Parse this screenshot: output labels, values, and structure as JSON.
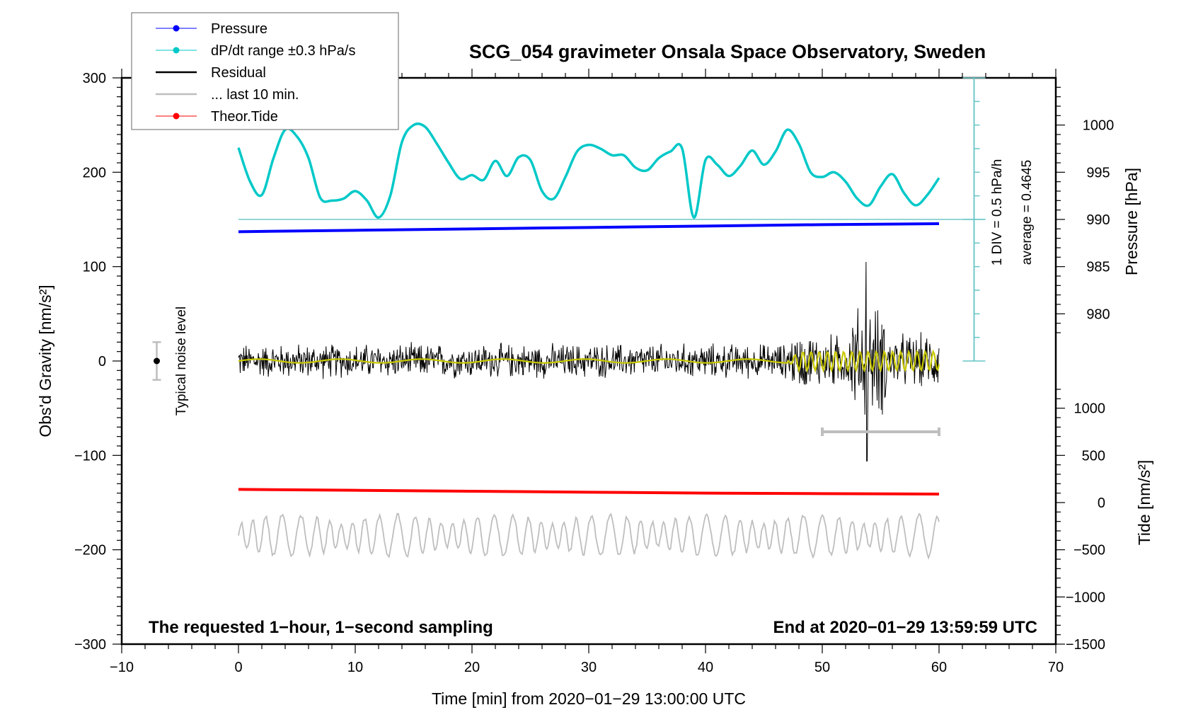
{
  "chart_data": {
    "type": "line",
    "title": "SCG_054 gravimeter Onsala Space Observatory, Sweden",
    "xlabel": "Time [min] from 2020−01−29 13:00:00 UTC",
    "ylabel_left": "Obs'd Gravity [nm/s²]",
    "ylabel_right_top": "Pressure [hPa]",
    "ylabel_right_bottom": "Tide [nm/s²]",
    "xlim": [
      -10,
      70
    ],
    "ylim_left": [
      -300,
      300
    ],
    "x_ticks": [
      "−10",
      "0",
      "10",
      "20",
      "30",
      "40",
      "50",
      "60",
      "70"
    ],
    "x_tick_values": [
      -10,
      0,
      10,
      20,
      30,
      40,
      50,
      60,
      70
    ],
    "y_left_ticks": [
      "300",
      "200",
      "100",
      "0",
      "−100",
      "−200",
      "−300"
    ],
    "y_left_tick_values": [
      300,
      200,
      100,
      0,
      -100,
      -200,
      -300
    ],
    "pressure_axis": {
      "ticks": [
        "1000",
        "995",
        "990",
        "985",
        "980"
      ],
      "tick_values": [
        1000,
        995,
        990,
        985,
        980
      ],
      "unit": "hPa"
    },
    "tide_axis": {
      "ticks": [
        "1000",
        "500",
        "0",
        "−500",
        "−1000",
        "−1500"
      ],
      "tick_values": [
        1000,
        500,
        0,
        -500,
        -1000,
        -1500
      ],
      "unit": "nm/s²"
    },
    "dpdt_scale": {
      "div_label": "1 DIV = 0.5 hPa/h",
      "average_label": "average = 0.4645"
    },
    "noise_label": "Typical noise level",
    "noise_level": 20,
    "annotation_left": "The requested 1−hour, 1−second sampling",
    "annotation_right": "End at 2020−01−29 13:59:59 UTC",
    "last_10_min_range": [
      50,
      60
    ],
    "legend": {
      "position": "top-left",
      "entries": [
        {
          "label": "Pressure",
          "color": "#0000ff",
          "marker": "dot"
        },
        {
          "label": "dP/dt range ±0.3 hPa/s",
          "color": "#00c8c8",
          "marker": "dot"
        },
        {
          "label": "Residual",
          "color": "#000000",
          "marker": "line"
        },
        {
          "label": "... last 10 min.",
          "color": "#bebebe",
          "marker": "line"
        },
        {
          "label": "Theor.Tide",
          "color": "#ff0000",
          "marker": "dot"
        }
      ]
    },
    "series": [
      {
        "name": "dP/dt",
        "color": "#00c8c8",
        "x": [
          0,
          1,
          2,
          3,
          4,
          5,
          6,
          7,
          8,
          9,
          10,
          11,
          12,
          13,
          14,
          15,
          16,
          17,
          18,
          19,
          20,
          21,
          22,
          23,
          24,
          25,
          26,
          27,
          28,
          29,
          30,
          31,
          32,
          33,
          34,
          35,
          36,
          37,
          38,
          39,
          40,
          41,
          42,
          43,
          44,
          45,
          46,
          47,
          48,
          49,
          50,
          51,
          52,
          53,
          54,
          55,
          56,
          57,
          58,
          59,
          60
        ],
        "y_plot": [
          226,
          190,
          176,
          215,
          245,
          238,
          215,
          173,
          170,
          172,
          180,
          170,
          152,
          175,
          232,
          250,
          248,
          230,
          210,
          193,
          197,
          192,
          212,
          196,
          216,
          213,
          180,
          172,
          195,
          222,
          229,
          225,
          218,
          218,
          205,
          202,
          215,
          222,
          225,
          152,
          213,
          208,
          196,
          207,
          223,
          208,
          222,
          245,
          230,
          200,
          195,
          200,
          190,
          172,
          165,
          185,
          198,
          178,
          165,
          176,
          194
        ]
      },
      {
        "name": "Pressure",
        "color": "#0000ff",
        "x": [
          0,
          10,
          20,
          30,
          40,
          50,
          60
        ],
        "y_plot": [
          137,
          138.5,
          140,
          141.5,
          143,
          144.5,
          145.5
        ]
      },
      {
        "name": "Theor.Tide",
        "color": "#ff0000",
        "x": [
          0,
          10,
          20,
          30,
          40,
          50,
          60
        ],
        "y_plot": [
          -136,
          -137,
          -138,
          -139,
          -140,
          -140.5,
          -141
        ]
      },
      {
        "name": "Residual",
        "color": "#000000",
        "x_range": [
          0,
          60
        ],
        "y_center": 0,
        "typical_amplitude": 20,
        "max": 105,
        "min": -106
      },
      {
        "name": "... last 10 min.",
        "color": "#bebebe",
        "x_range": [
          0,
          60
        ],
        "y_center": -185,
        "typical_amplitude": 20
      },
      {
        "name": "Residual smoothed",
        "color": "#c8c800",
        "x_range": [
          0,
          60
        ],
        "y_center": 0
      }
    ]
  }
}
